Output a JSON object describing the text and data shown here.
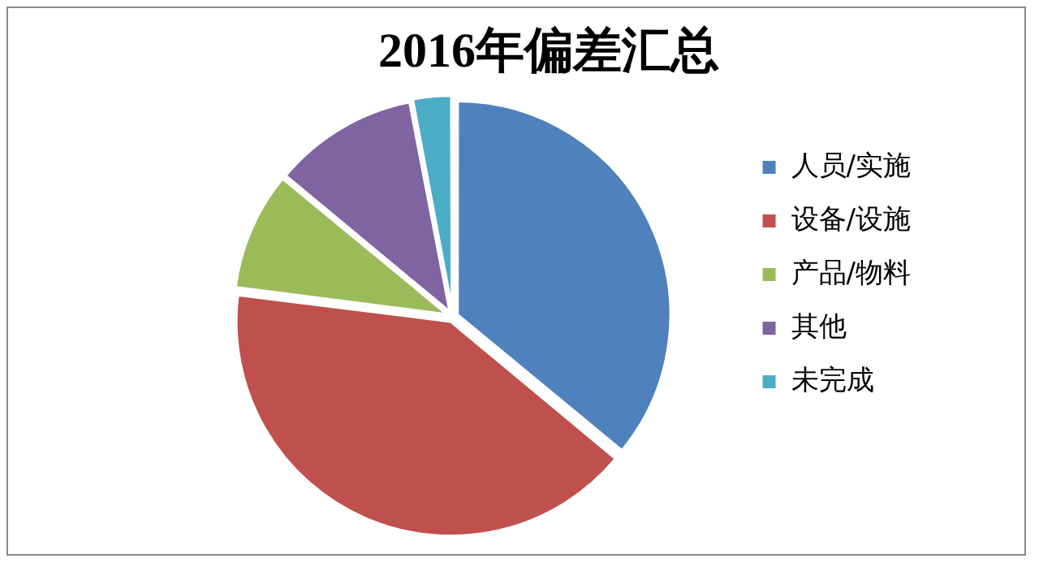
{
  "chart_data": {
    "type": "pie",
    "title": "2016年偏差汇总",
    "categories": [
      "人员/实施",
      "设备/设施",
      "产品/物料",
      "其他",
      "未完成"
    ],
    "values": [
      36,
      41,
      9,
      11,
      3
    ],
    "colors": [
      "#4f81bd",
      "#c0504d",
      "#9bbb59",
      "#8064a2",
      "#4bacc6"
    ],
    "legend": "right"
  }
}
